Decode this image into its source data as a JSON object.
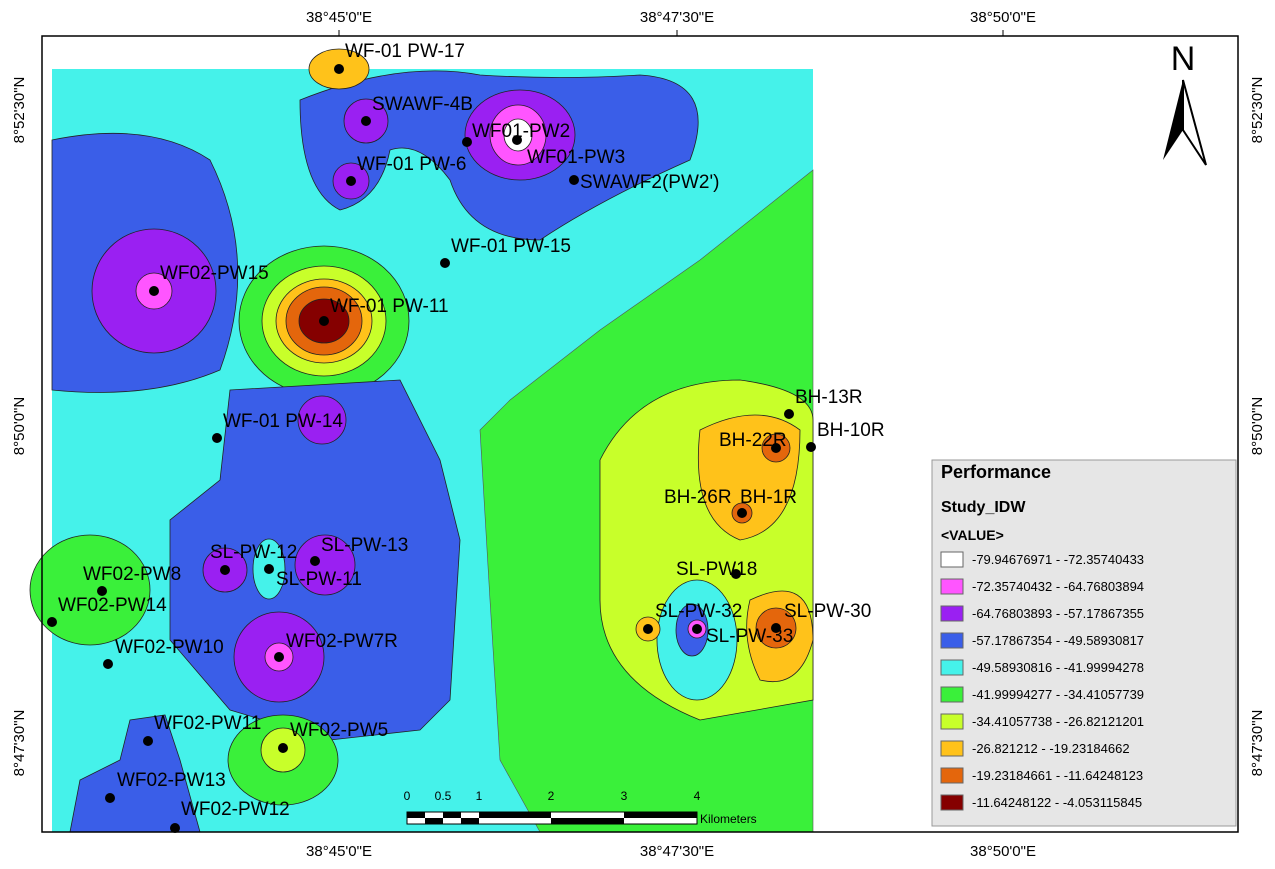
{
  "map": {
    "x_labels": [
      "38°45'0\"E",
      "38°47'30\"E",
      "38°50'0\"E"
    ],
    "y_labels": [
      "8°52'30\"N",
      "8°50'0\"N",
      "8°47'30\"N"
    ],
    "north": "N",
    "wells": [
      "WF-01 PW-17",
      "SWAWF-4B",
      "WF01-PW2",
      "WF01-PW3",
      "WF-01 PW-6",
      "SWAWF2(PW2')",
      "WF-01 PW-15",
      "WF02-PW15",
      "WF-01 PW-11",
      "BH-13R",
      "BH-10R",
      "BH-22R",
      "WF-01 PW-14",
      "BH-26R",
      "BH-1R",
      "SL-PW-12",
      "SL-PW-13",
      "SL-PW-11",
      "WF02-PW8",
      "SL-PW18",
      "WF02-PW14",
      "SL-PW-32",
      "SL-PW-30",
      "SL-PW-33",
      "WF02-PW10",
      "WF02-PW7R",
      "WF02-PW11",
      "WF02-PW5",
      "WF02-PW13",
      "WF02-PW12"
    ],
    "scale": {
      "ticks": [
        "0",
        "0.5",
        "1",
        "2",
        "3",
        "4"
      ],
      "unit": "Kilometers"
    },
    "legend": {
      "title": "Performance",
      "subtitle": "Study_IDW",
      "field": "<VALUE>",
      "classes": [
        {
          "label": "-79.94676971 - -72.35740433",
          "color": "#ffffff"
        },
        {
          "label": "-72.35740432 - -64.76803894",
          "color": "#ff55ff"
        },
        {
          "label": "-64.76803893 - -57.17867355",
          "color": "#9a20f2"
        },
        {
          "label": "-57.17867354 - -49.58930817",
          "color": "#3a5ee8"
        },
        {
          "label": "-49.58930816 - -41.99994278",
          "color": "#45f2ea"
        },
        {
          "label": "-41.99994277 - -34.41057739",
          "color": "#3af03a"
        },
        {
          "label": "-34.41057738 - -26.82121201",
          "color": "#c8ff2a"
        },
        {
          "label": "-26.821212 - -19.23184662",
          "color": "#ffc21a"
        },
        {
          "label": "-19.23184661 - -11.64248123",
          "color": "#e4660c"
        },
        {
          "label": "-11.64248122 - -4.053115845",
          "color": "#850000"
        }
      ]
    }
  }
}
